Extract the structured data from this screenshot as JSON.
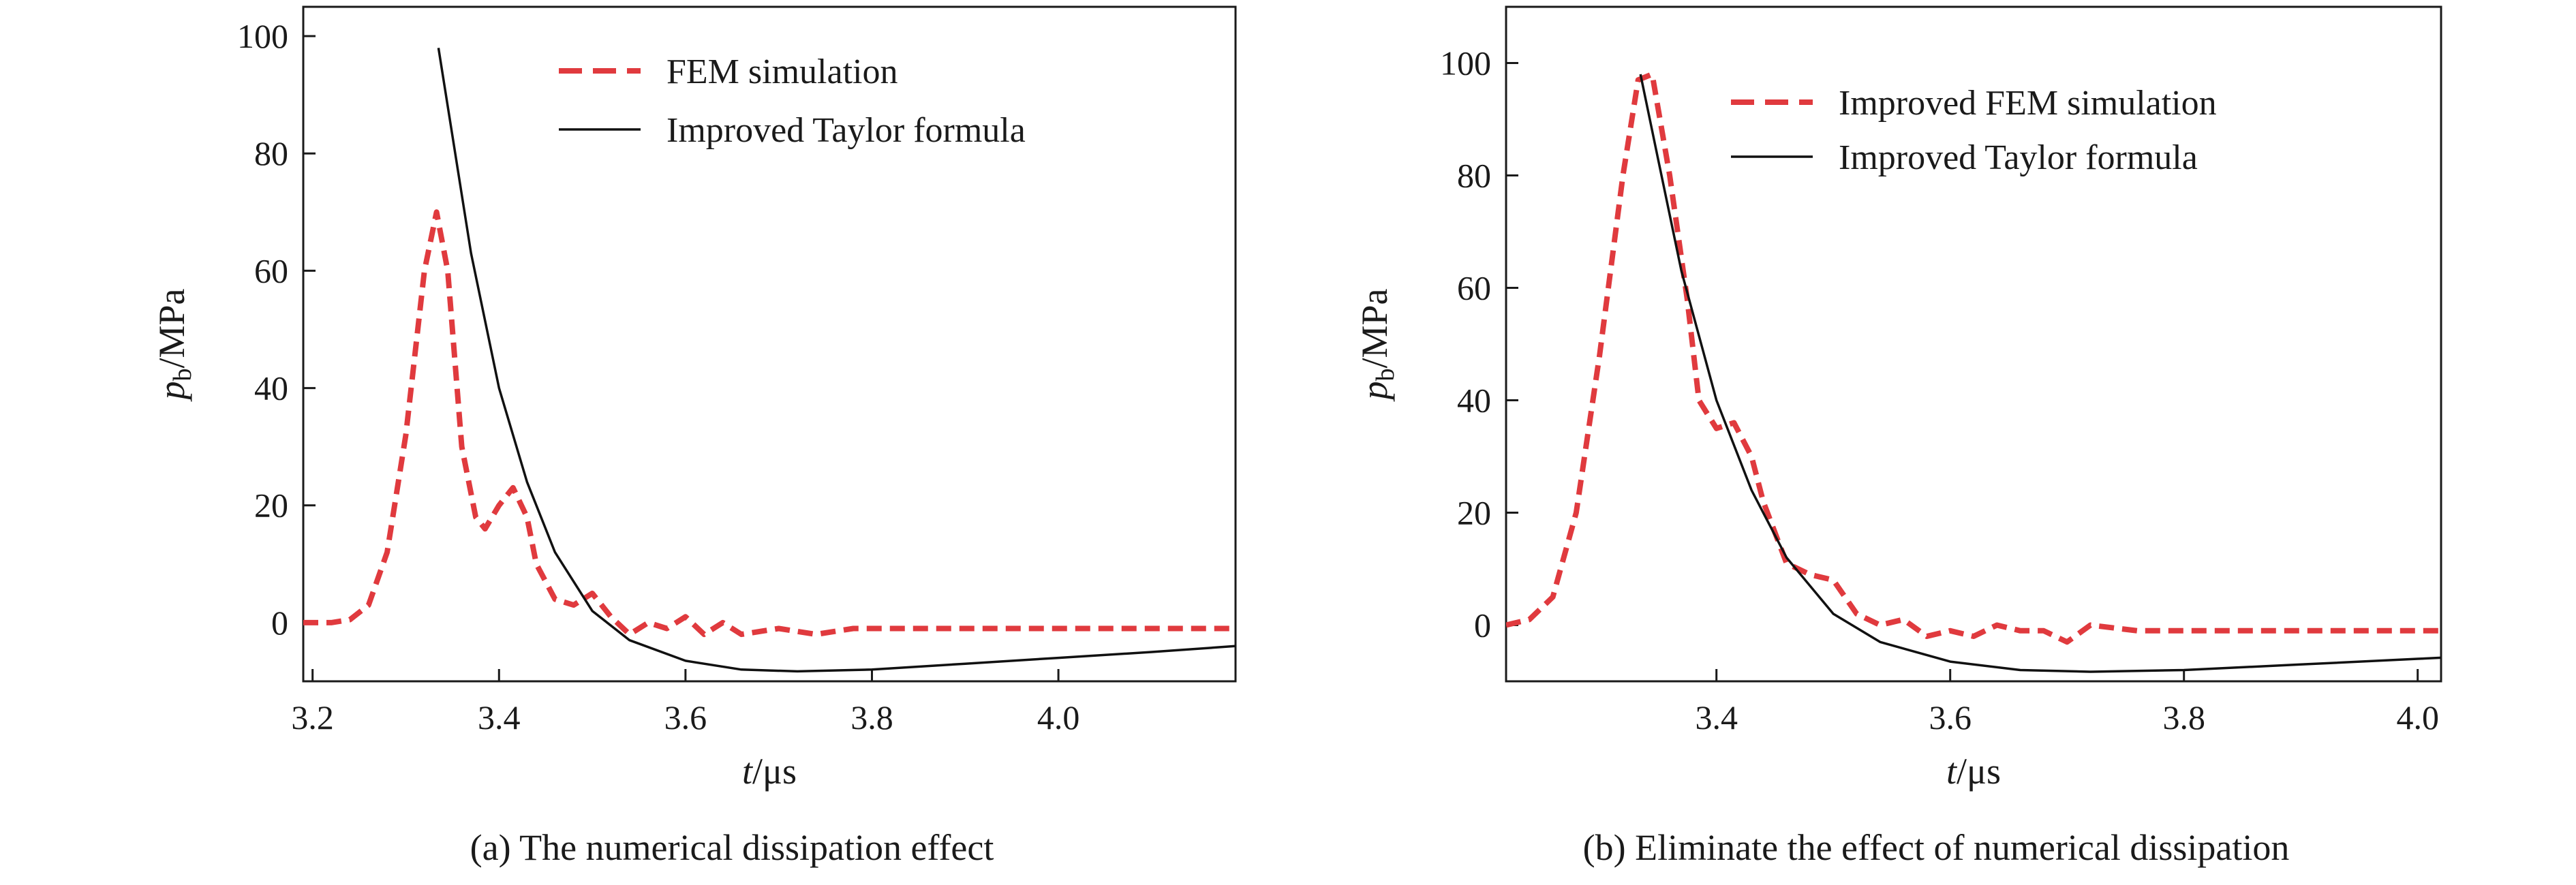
{
  "chart_data": [
    {
      "type": "line",
      "caption": "(a) The numerical dissipation effect",
      "xlabel": {
        "var": "t",
        "unit": "/μs"
      },
      "ylabel": {
        "var": "p",
        "sub": "b",
        "unit": "/MPa"
      },
      "xlim": [
        3.19,
        4.19
      ],
      "ylim": [
        -10,
        105
      ],
      "xticks": [
        3.2,
        3.4,
        3.6,
        3.8,
        4.0
      ],
      "xtick_labels": [
        "3.2",
        "3.4",
        "3.6",
        "3.8",
        "4.0"
      ],
      "yticks": [
        0,
        20,
        40,
        60,
        80,
        100
      ],
      "ytick_labels": [
        "0",
        "20",
        "40",
        "60",
        "80",
        "100"
      ],
      "grid": false,
      "legend_position": "top-center",
      "series": [
        {
          "name": "FEM simulation",
          "style": "dashed",
          "color": "#e03a3e",
          "points": [
            [
              3.19,
              0
            ],
            [
              3.22,
              0
            ],
            [
              3.24,
              0.5
            ],
            [
              3.26,
              3
            ],
            [
              3.28,
              12
            ],
            [
              3.3,
              32
            ],
            [
              3.32,
              60
            ],
            [
              3.333,
              70
            ],
            [
              3.345,
              60
            ],
            [
              3.36,
              30
            ],
            [
              3.375,
              18
            ],
            [
              3.385,
              16
            ],
            [
              3.4,
              20
            ],
            [
              3.415,
              23
            ],
            [
              3.43,
              18
            ],
            [
              3.44,
              10
            ],
            [
              3.46,
              4
            ],
            [
              3.48,
              3
            ],
            [
              3.5,
              5
            ],
            [
              3.52,
              1
            ],
            [
              3.54,
              -2
            ],
            [
              3.56,
              0
            ],
            [
              3.58,
              -1
            ],
            [
              3.6,
              1
            ],
            [
              3.62,
              -2
            ],
            [
              3.64,
              0
            ],
            [
              3.66,
              -2
            ],
            [
              3.7,
              -1
            ],
            [
              3.74,
              -2
            ],
            [
              3.78,
              -1
            ],
            [
              3.82,
              -1
            ],
            [
              3.86,
              -1
            ],
            [
              3.9,
              -1
            ],
            [
              3.94,
              -1
            ],
            [
              3.98,
              -1
            ],
            [
              4.02,
              -1
            ],
            [
              4.06,
              -1
            ],
            [
              4.1,
              -1
            ],
            [
              4.14,
              -1
            ],
            [
              4.19,
              -1
            ]
          ]
        },
        {
          "name": "Improved Taylor formula",
          "style": "solid",
          "color": "#111111",
          "points": [
            [
              3.335,
              98
            ],
            [
              3.35,
              83
            ],
            [
              3.37,
              63
            ],
            [
              3.4,
              40
            ],
            [
              3.43,
              24
            ],
            [
              3.46,
              12
            ],
            [
              3.5,
              2
            ],
            [
              3.54,
              -3
            ],
            [
              3.6,
              -6.5
            ],
            [
              3.66,
              -8
            ],
            [
              3.72,
              -8.3
            ],
            [
              3.8,
              -8
            ],
            [
              3.9,
              -7
            ],
            [
              4.0,
              -6
            ],
            [
              4.1,
              -5
            ],
            [
              4.19,
              -4
            ]
          ]
        }
      ]
    },
    {
      "type": "line",
      "caption": "(b) Eliminate the effect of numerical dissipation",
      "xlabel": {
        "var": "t",
        "unit": "/μs"
      },
      "ylabel": {
        "var": "p",
        "sub": "b",
        "unit": "/MPa"
      },
      "xlim": [
        3.22,
        4.02
      ],
      "ylim": [
        -10,
        110
      ],
      "xticks": [
        3.4,
        3.6,
        3.8,
        4.0
      ],
      "xtick_labels": [
        "3.4",
        "3.6",
        "3.8",
        "4.0"
      ],
      "yticks": [
        0,
        20,
        40,
        60,
        80,
        100
      ],
      "ytick_labels": [
        "0",
        "20",
        "40",
        "60",
        "80",
        "100"
      ],
      "grid": false,
      "legend_position": "top-right",
      "series": [
        {
          "name": "Improved FEM simulation",
          "style": "dashed",
          "color": "#e03a3e",
          "points": [
            [
              3.22,
              0
            ],
            [
              3.24,
              1
            ],
            [
              3.26,
              5
            ],
            [
              3.28,
              20
            ],
            [
              3.3,
              48
            ],
            [
              3.32,
              80
            ],
            [
              3.333,
              97
            ],
            [
              3.345,
              98
            ],
            [
              3.36,
              80
            ],
            [
              3.375,
              58
            ],
            [
              3.385,
              40
            ],
            [
              3.4,
              35
            ],
            [
              3.415,
              36
            ],
            [
              3.43,
              30
            ],
            [
              3.44,
              22
            ],
            [
              3.46,
              11
            ],
            [
              3.48,
              9
            ],
            [
              3.5,
              8
            ],
            [
              3.52,
              2
            ],
            [
              3.54,
              0
            ],
            [
              3.56,
              1
            ],
            [
              3.58,
              -2
            ],
            [
              3.6,
              -1
            ],
            [
              3.62,
              -2
            ],
            [
              3.64,
              0
            ],
            [
              3.66,
              -1
            ],
            [
              3.68,
              -1
            ],
            [
              3.7,
              -3
            ],
            [
              3.72,
              0
            ],
            [
              3.76,
              -1
            ],
            [
              3.8,
              -1
            ],
            [
              3.84,
              -1
            ],
            [
              3.88,
              -1
            ],
            [
              3.92,
              -1
            ],
            [
              3.96,
              -1
            ],
            [
              4.0,
              -1
            ],
            [
              4.02,
              -1
            ]
          ]
        },
        {
          "name": "Improved Taylor formula",
          "style": "solid",
          "color": "#111111",
          "points": [
            [
              3.335,
              98
            ],
            [
              3.35,
              83
            ],
            [
              3.37,
              63
            ],
            [
              3.4,
              40
            ],
            [
              3.43,
              24
            ],
            [
              3.46,
              12
            ],
            [
              3.5,
              2
            ],
            [
              3.54,
              -3
            ],
            [
              3.6,
              -6.5
            ],
            [
              3.66,
              -8
            ],
            [
              3.72,
              -8.3
            ],
            [
              3.8,
              -8
            ],
            [
              3.9,
              -7
            ],
            [
              4.0,
              -6
            ],
            [
              4.02,
              -5.8
            ]
          ]
        }
      ]
    }
  ]
}
